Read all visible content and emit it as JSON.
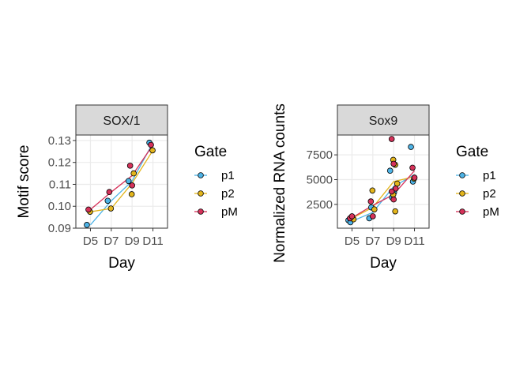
{
  "colors": {
    "p1": "#4db3e6",
    "p2": "#e3b51c",
    "pM": "#d6325a",
    "strip_bg": "#d9d9d9",
    "grid": "#ebebeb"
  },
  "chart_data": [
    {
      "type": "scatter",
      "facet_label": "SOX/1",
      "xlabel": "Day",
      "ylabel": "Motif score",
      "categories": [
        "D5",
        "D7",
        "D9",
        "D11"
      ],
      "yticks": [
        "0.09",
        "0.10",
        "0.11",
        "0.12",
        "0.13"
      ],
      "ylim": [
        0.09,
        0.1325
      ],
      "grid": true,
      "legend": {
        "title": "Gate",
        "position": "right",
        "entries": [
          "p1",
          "p2",
          "pM"
        ]
      },
      "series": [
        {
          "name": "p1",
          "points": [
            [
              "D5",
              0.0915
            ],
            [
              "D7",
              0.1025
            ],
            [
              "D9",
              0.1115
            ],
            [
              "D11",
              0.129
            ]
          ],
          "line": [
            [
              "D5",
              0.0915
            ],
            [
              "D7",
              0.1025
            ],
            [
              "D9",
              0.1115
            ],
            [
              "D11",
              0.129
            ]
          ]
        },
        {
          "name": "p2",
          "points": [
            [
              "D5",
              0.0975
            ],
            [
              "D7",
              0.099
            ],
            [
              "D9",
              0.1055
            ],
            [
              "D9",
              0.115
            ],
            [
              "D11",
              0.1255
            ]
          ],
          "line": [
            [
              "D5",
              0.0975
            ],
            [
              "D7",
              0.099
            ],
            [
              "D9",
              0.1105
            ],
            [
              "D11",
              0.1255
            ]
          ]
        },
        {
          "name": "pM",
          "points": [
            [
              "D5",
              0.0985
            ],
            [
              "D7",
              0.1065
            ],
            [
              "D9",
              0.1185
            ],
            [
              "D9",
              0.1095
            ],
            [
              "D11",
              0.128
            ]
          ],
          "line": [
            [
              "D5",
              0.0985
            ],
            [
              "D7",
              0.1065
            ],
            [
              "D9",
              0.114
            ],
            [
              "D11",
              0.128
            ]
          ]
        }
      ]
    },
    {
      "type": "scatter",
      "facet_label": "Sox9",
      "xlabel": "Day",
      "ylabel": "Normalized RNA counts",
      "categories": [
        "D5",
        "D7",
        "D9",
        "D11"
      ],
      "yticks": [
        "2500",
        "5000",
        "7500"
      ],
      "ylim": [
        100,
        9500
      ],
      "grid": true,
      "legend": {
        "title": "Gate",
        "position": "right",
        "entries": [
          "p1",
          "p2",
          "pM"
        ]
      },
      "series": [
        {
          "name": "p1",
          "points": [
            [
              "D5",
              900
            ],
            [
              "D5",
              700
            ],
            [
              "D7",
              1100
            ],
            [
              "D7",
              2200
            ],
            [
              "D9",
              5900
            ],
            [
              "D9",
              3200
            ],
            [
              "D9",
              3700
            ],
            [
              "D11",
              8300
            ],
            [
              "D11",
              4800
            ]
          ],
          "line": [
            [
              "D5",
              800
            ],
            [
              "D7",
              1700
            ],
            [
              "D9",
              4300
            ],
            [
              "D11",
              5500
            ]
          ]
        },
        {
          "name": "p2",
          "points": [
            [
              "D5",
              1200
            ],
            [
              "D5",
              1000
            ],
            [
              "D7",
              3900
            ],
            [
              "D7",
              2000
            ],
            [
              "D9",
              7000
            ],
            [
              "D9",
              6500
            ],
            [
              "D9",
              4600
            ],
            [
              "D9",
              3500
            ],
            [
              "D9",
              1800
            ],
            [
              "D11",
              5100
            ]
          ],
          "line": [
            [
              "D5",
              1100
            ],
            [
              "D7",
              2200
            ],
            [
              "D9",
              4800
            ],
            [
              "D11",
              5300
            ]
          ]
        },
        {
          "name": "pM",
          "points": [
            [
              "D5",
              1100
            ],
            [
              "D5",
              1300
            ],
            [
              "D7",
              2800
            ],
            [
              "D7",
              1300
            ],
            [
              "D9",
              9100
            ],
            [
              "D9",
              6600
            ],
            [
              "D9",
              4100
            ],
            [
              "D9",
              3800
            ],
            [
              "D9",
              3000
            ],
            [
              "D11",
              6200
            ],
            [
              "D11",
              5200
            ]
          ],
          "line": [
            [
              "D5",
              1150
            ],
            [
              "D7",
              2400
            ],
            [
              "D9",
              3500
            ],
            [
              "D11",
              5900
            ]
          ]
        }
      ]
    }
  ]
}
